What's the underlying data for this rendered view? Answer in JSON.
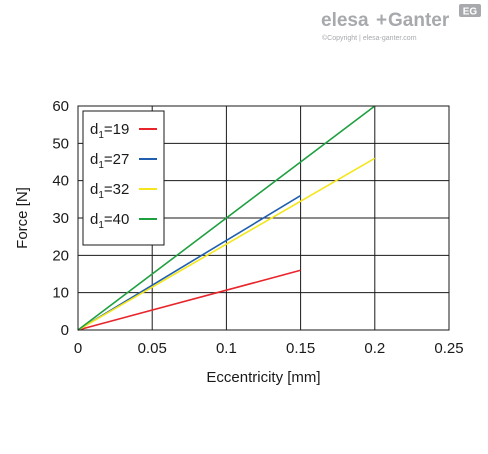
{
  "brand": {
    "name_part1": "elesa",
    "name_part2": "Ganter",
    "plus": "+",
    "badge": "EG",
    "copyright": "©Copyright | elesa-ganter.com"
  },
  "chart_data": {
    "type": "line",
    "xlabel": "Eccentricity [mm]",
    "ylabel": "Force [N]",
    "xlim": [
      0,
      0.25
    ],
    "ylim": [
      0,
      60
    ],
    "xticks": [
      0,
      0.05,
      0.1,
      0.15,
      0.2,
      0.25
    ],
    "xtick_labels": [
      "0",
      "0.05",
      "0.1",
      "0.15",
      "0.2",
      "0.25"
    ],
    "yticks": [
      0,
      10,
      20,
      30,
      40,
      50,
      60
    ],
    "ytick_labels": [
      "0",
      "10",
      "20",
      "30",
      "40",
      "50",
      "60"
    ],
    "grid": true,
    "legend_position": "top-left",
    "series": [
      {
        "name": "d1=19",
        "label_main": "d",
        "label_sub": "1",
        "label_rest": "=19",
        "color": "#e8252b",
        "x": [
          0,
          0.15
        ],
        "y": [
          0,
          16
        ]
      },
      {
        "name": "d1=27",
        "label_main": "d",
        "label_sub": "1",
        "label_rest": "=27",
        "color": "#1f5fae",
        "x": [
          0,
          0.15
        ],
        "y": [
          0,
          36
        ]
      },
      {
        "name": "d1=32",
        "label_main": "d",
        "label_sub": "1",
        "label_rest": "=32",
        "color": "#f4e61e",
        "x": [
          0,
          0.2
        ],
        "y": [
          0,
          46
        ]
      },
      {
        "name": "d1=40",
        "label_main": "d",
        "label_sub": "1",
        "label_rest": "=40",
        "color": "#1fa040",
        "x": [
          0,
          0.2
        ],
        "y": [
          0,
          60
        ]
      }
    ]
  }
}
